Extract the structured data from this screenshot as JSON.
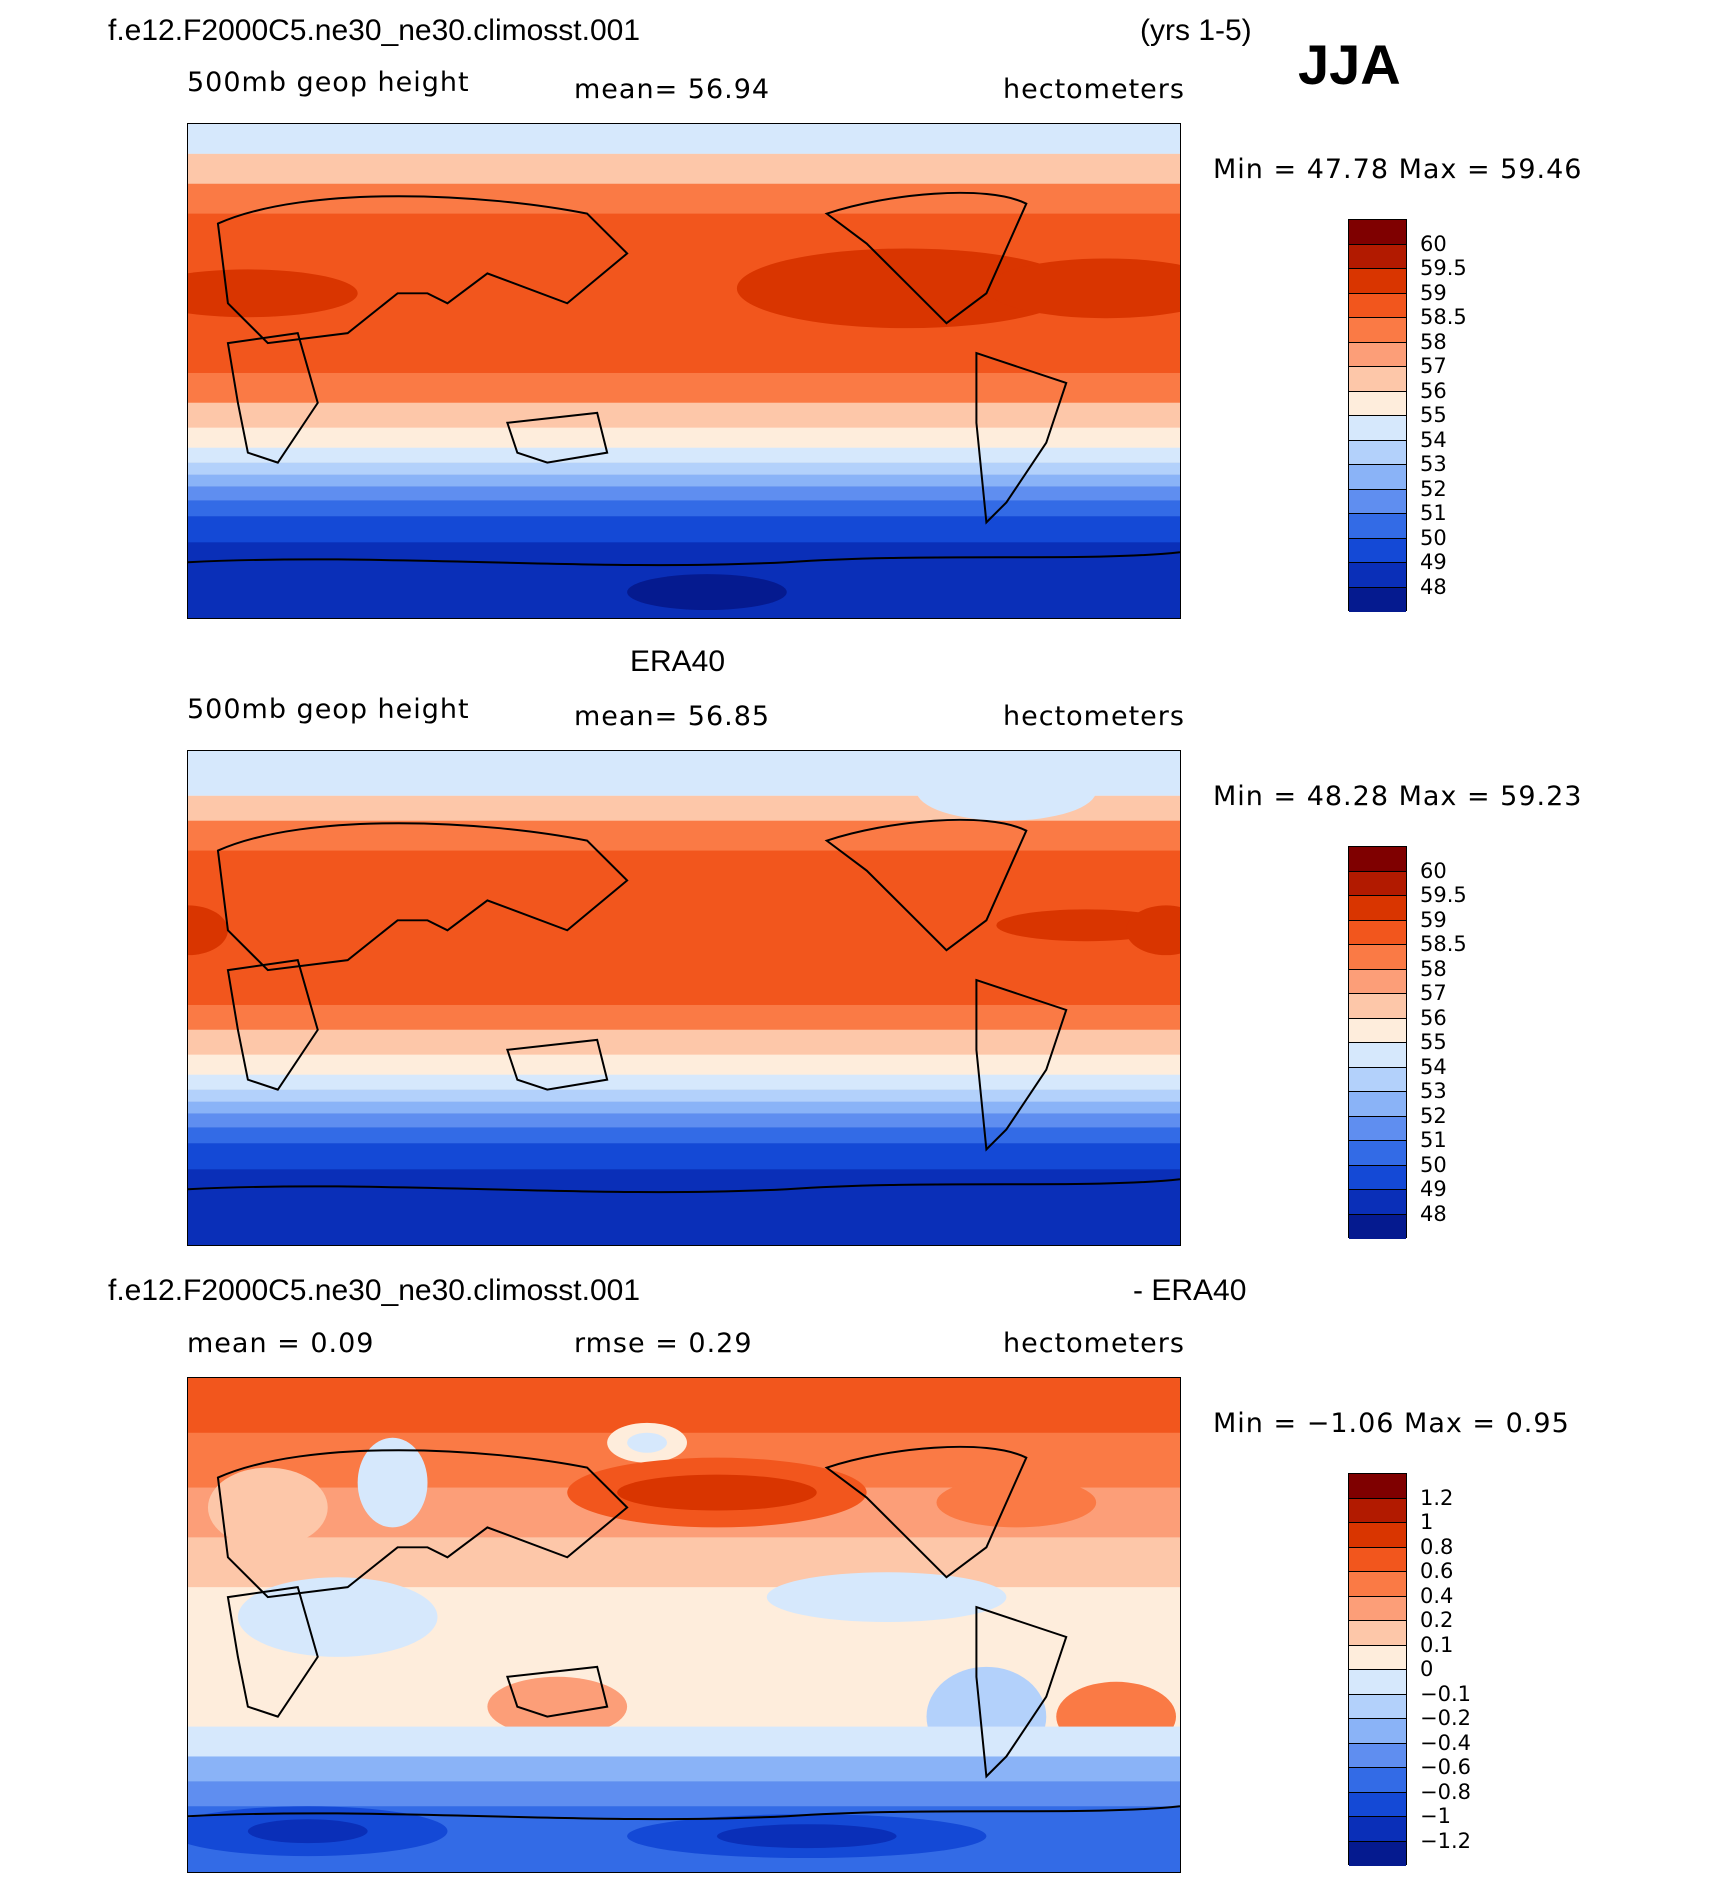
{
  "header": {
    "case_title": "f.e12.F2000C5.ne30_ne30.climosst.001",
    "years": "(yrs 1-5)",
    "season": "JJA"
  },
  "panel1": {
    "variable": "500mb  geop  height",
    "mean_text": "mean=   56.94",
    "units": "hectometers",
    "minmax": "Min  =    47.78  Max  =    59.46",
    "colorbar_labels": [
      "60",
      "59.5",
      "59",
      "58.5",
      "58",
      "57",
      "56",
      "55",
      "54",
      "53",
      "52",
      "51",
      "50",
      "49",
      "48"
    ]
  },
  "panel2": {
    "title": "ERA40",
    "variable": "500mb  geop  height",
    "mean_text": "mean=   56.85",
    "units": "hectometers",
    "minmax": "Min  =    48.28  Max  =    59.23",
    "colorbar_labels": [
      "60",
      "59.5",
      "59",
      "58.5",
      "58",
      "57",
      "56",
      "55",
      "54",
      "53",
      "52",
      "51",
      "50",
      "49",
      "48"
    ]
  },
  "panel3": {
    "title_left": "f.e12.F2000C5.ne30_ne30.climosst.001",
    "title_right": "- ERA40",
    "mean_text": "mean  =     0.09",
    "rmse_text": "rmse  =     0.29",
    "units": "hectometers",
    "minmax": "Min  =   −1.06  Max  =     0.95",
    "colorbar_labels": [
      "1.2",
      "1",
      "0.8",
      "0.6",
      "0.4",
      "0.2",
      "0.1",
      "0",
      "−0.1",
      "−0.2",
      "−0.4",
      "−0.6",
      "−0.8",
      "−1",
      "−1.2"
    ]
  },
  "colors": {
    "palette": [
      "#7f0000",
      "#b21a00",
      "#d93500",
      "#f2561d",
      "#fa7a45",
      "#fc9e78",
      "#fdc7a9",
      "#feeddc",
      "#d6e8fc",
      "#b3d1fb",
      "#8ab3f7",
      "#5f8ef0",
      "#336be6",
      "#1449d6",
      "#0a2fb8",
      "#051a8f",
      "#000f6e"
    ]
  }
}
